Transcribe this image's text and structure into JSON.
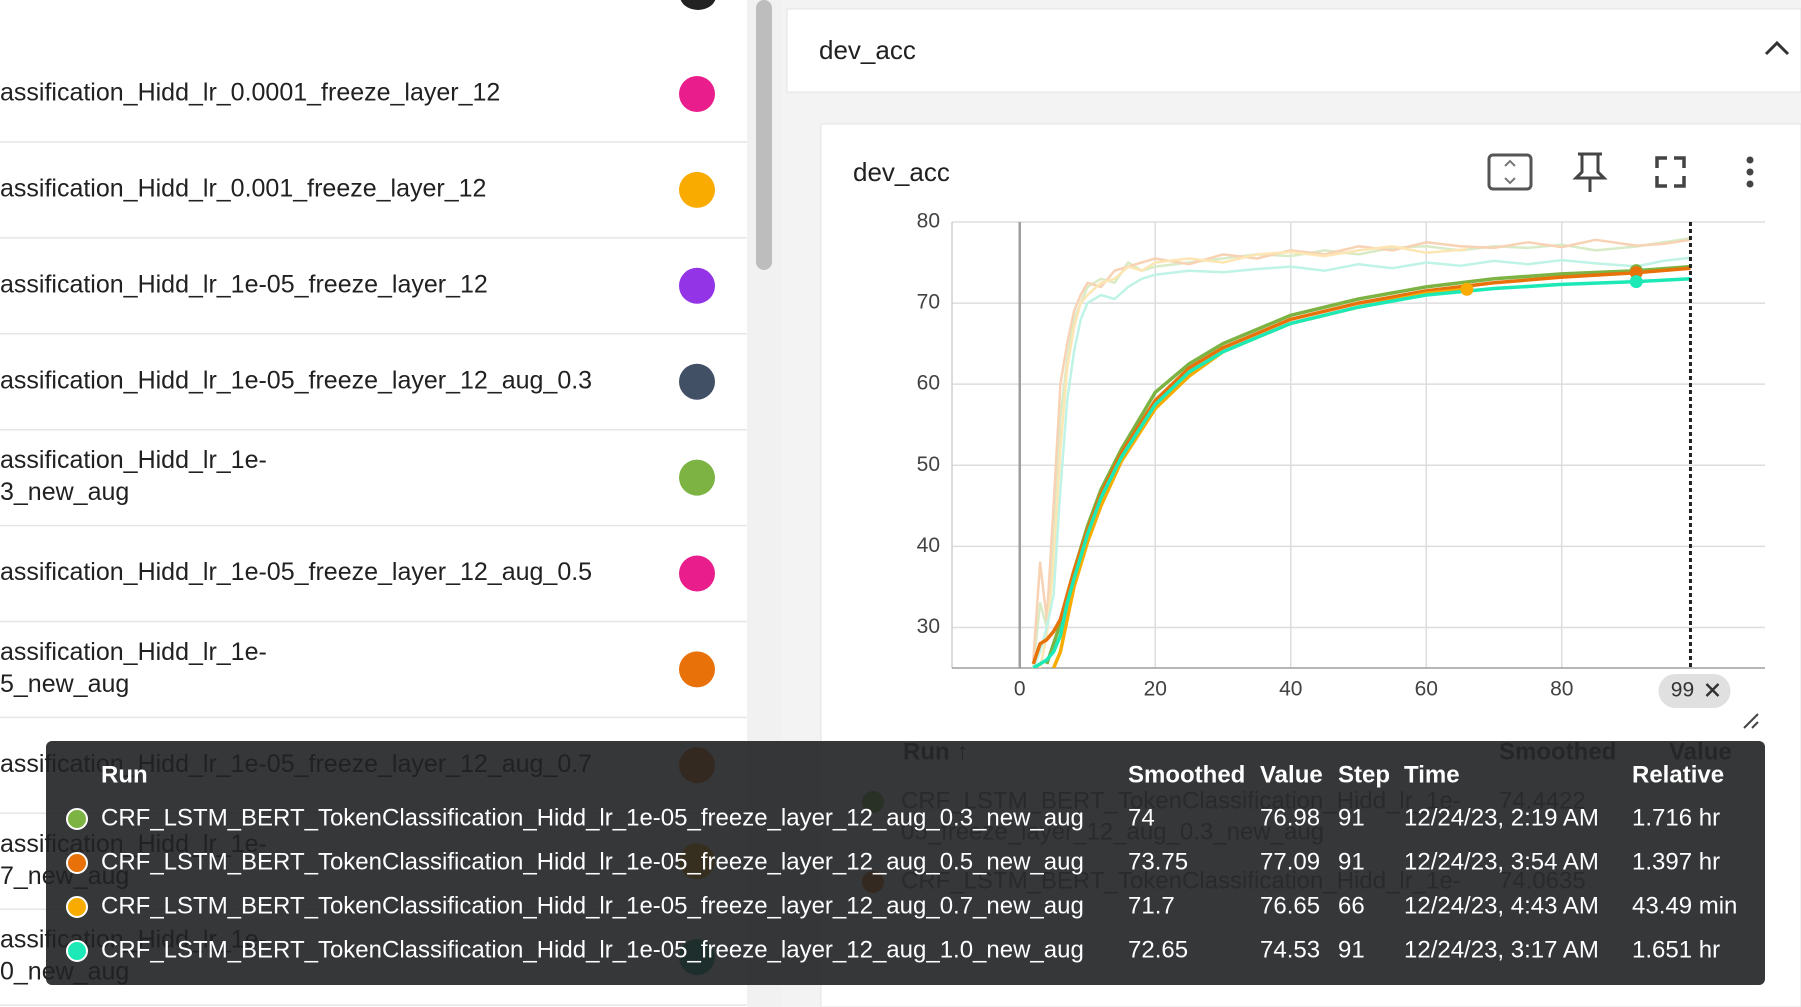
{
  "sidebar": {
    "runs": [
      {
        "label": [
          "assification_Hidd_lr_0.0001_freeze_layer_12"
        ],
        "color": "#e91e8c"
      },
      {
        "label": [
          "assification_Hidd_lr_0.001_freeze_layer_12"
        ],
        "color": "#f9ab00"
      },
      {
        "label": [
          "assification_Hidd_lr_1e-05_freeze_layer_12"
        ],
        "color": "#9334e6"
      },
      {
        "label": [
          "assification_Hidd_lr_1e-05_freeze_layer_12_aug_0.3"
        ],
        "color": "#425066"
      },
      {
        "label": [
          "assification_Hidd_lr_1e-",
          "3_new_aug"
        ],
        "color": "#7cb342"
      },
      {
        "label": [
          "assification_Hidd_lr_1e-05_freeze_layer_12_aug_0.5"
        ],
        "color": "#e91e8c"
      },
      {
        "label": [
          "assification_Hidd_lr_1e-",
          "5_new_aug"
        ],
        "color": "#e8710a"
      },
      {
        "label": [
          "assification_Hidd_lr_1e-05_freeze_layer_12_aug_0.7"
        ],
        "color": "#e8710a"
      },
      {
        "label": [
          "assification_Hidd_lr_1e-",
          "7_new_aug"
        ],
        "color": "#f9ab00"
      },
      {
        "label": [
          "assification_Hidd_lr_1e-",
          "0_new_aug"
        ],
        "color": "#12a57f"
      }
    ]
  },
  "section_title": "dev_acc",
  "chart_data": {
    "type": "line",
    "title": "dev_acc",
    "xlim": [
      -10,
      110
    ],
    "ylim": [
      25,
      80
    ],
    "xticks": [
      0,
      20,
      40,
      60,
      80
    ],
    "yticks": [
      30,
      40,
      50,
      60,
      70,
      80
    ],
    "grid": true,
    "cursor": 99,
    "raw_series": [
      {
        "color": "#d8ebc6",
        "x": [
          2,
          3,
          4,
          5,
          6,
          7,
          8,
          9,
          10,
          12,
          14,
          16,
          18,
          20,
          25,
          30,
          35,
          40,
          45,
          50,
          55,
          60,
          65,
          70,
          75,
          80,
          85,
          91,
          95,
          99
        ],
        "values": [
          25,
          33,
          30,
          41,
          56,
          63,
          68,
          70,
          72,
          73,
          72.5,
          75,
          74,
          74.5,
          75,
          75.5,
          76,
          75.8,
          76.5,
          76,
          76.8,
          77,
          76.5,
          77,
          76.8,
          77.2,
          76.5,
          76.98,
          77.5,
          78
        ]
      },
      {
        "color": "#f8d2b4",
        "x": [
          2,
          3,
          4,
          5,
          6,
          7,
          8,
          9,
          10,
          12,
          14,
          16,
          18,
          20,
          25,
          30,
          35,
          40,
          45,
          50,
          55,
          60,
          65,
          70,
          75,
          80,
          85,
          91,
          95,
          99
        ],
        "values": [
          26,
          38,
          31,
          45,
          60,
          65,
          69,
          71,
          72.5,
          72,
          74,
          74.5,
          75,
          75.5,
          74.8,
          76,
          75.5,
          76.5,
          76,
          77,
          76.5,
          77.5,
          77,
          76.8,
          77.5,
          76.9,
          77.8,
          77.09,
          77.3,
          77.8
        ]
      },
      {
        "color": "#fde6b3",
        "x": [
          3,
          4,
          5,
          6,
          7,
          8,
          9,
          10,
          12,
          14,
          16,
          18,
          20,
          25,
          30,
          35,
          40,
          45,
          50,
          55,
          60,
          66
        ],
        "values": [
          25,
          29,
          38,
          52,
          62,
          67,
          70,
          71,
          72.5,
          73,
          74.5,
          74,
          75,
          75.5,
          75,
          76,
          76.3,
          75.8,
          76.5,
          77,
          76.2,
          76.65
        ]
      },
      {
        "color": "#bff3e6",
        "x": [
          2,
          3,
          4,
          5,
          6,
          7,
          8,
          9,
          10,
          12,
          14,
          16,
          18,
          20,
          25,
          30,
          35,
          40,
          45,
          50,
          55,
          60,
          65,
          70,
          75,
          80,
          85,
          91,
          95,
          99
        ],
        "values": [
          25,
          27,
          30,
          34,
          47,
          58,
          64,
          68,
          70,
          71,
          70.5,
          72,
          73,
          73.5,
          74,
          73.8,
          74.2,
          74.5,
          74,
          74.8,
          74.3,
          75,
          74.6,
          75.2,
          74.8,
          75.3,
          74.9,
          74.53,
          75.2,
          75.6
        ]
      }
    ],
    "series": [
      {
        "color": "#7cb342",
        "x": [
          4,
          5,
          6,
          7,
          8,
          10,
          12,
          15,
          20,
          25,
          30,
          40,
          50,
          60,
          70,
          80,
          91,
          99
        ],
        "values": [
          25.5,
          28,
          30.5,
          34,
          37,
          42.5,
          47,
          52,
          59,
          62.5,
          65,
          68.5,
          70.5,
          72,
          73,
          73.6,
          74,
          74.5
        ]
      },
      {
        "color": "#e8710a",
        "x": [
          2,
          3,
          4,
          5,
          6,
          7,
          8,
          10,
          12,
          15,
          20,
          25,
          30,
          40,
          50,
          60,
          70,
          80,
          91,
          99
        ],
        "values": [
          25.5,
          28,
          28.5,
          29.5,
          31,
          34,
          37,
          42,
          46.5,
          51.5,
          58,
          62,
          64.5,
          68,
          70,
          71.5,
          72.5,
          73.2,
          73.75,
          74.3
        ]
      },
      {
        "color": "#f9ab00",
        "x": [
          5,
          6,
          7,
          8,
          10,
          12,
          15,
          20,
          25,
          30,
          40,
          50,
          60,
          66
        ],
        "values": [
          25,
          27,
          31,
          35,
          40.5,
          45,
          50.5,
          57,
          61,
          64,
          67.5,
          69.5,
          71.2,
          71.7
        ]
      },
      {
        "color": "#1de9b6",
        "x": [
          2,
          3,
          4,
          5,
          6,
          7,
          8,
          10,
          12,
          15,
          20,
          25,
          30,
          40,
          50,
          60,
          70,
          80,
          91,
          99
        ],
        "values": [
          25,
          25.5,
          26,
          27,
          29,
          33,
          36,
          41.5,
          46,
          51,
          57.5,
          61.5,
          64,
          67.5,
          69.5,
          71,
          71.8,
          72.3,
          72.65,
          73
        ]
      }
    ]
  },
  "run_table": {
    "columns": [
      "Run ↑",
      "Smoothed",
      "Value"
    ],
    "rows": [
      {
        "run": [
          "CRF_LSTM_BERT_TokenClassification_Hidd_lr_1e-",
          "05_freeze_layer_12_aug_0.3_new_aug"
        ],
        "smoothed": 74.4422
      },
      {
        "run": [
          "CRF_LSTM_BERT_TokenClassification_Hidd_lr_1e-"
        ],
        "smoothed": 74.0635
      }
    ]
  },
  "tooltip": {
    "columns": [
      "Run",
      "Smoothed",
      "Value",
      "Step",
      "Time",
      "Relative"
    ],
    "rows": [
      {
        "run": "CRF_LSTM_BERT_TokenClassification_Hidd_lr_1e-05_freeze_layer_12_aug_0.3_new_aug",
        "smoothed": 74,
        "value": 76.98,
        "step": 91,
        "time": "12/24/23, 2:19 AM",
        "relative": "1.716 hr"
      },
      {
        "run": "CRF_LSTM_BERT_TokenClassification_Hidd_lr_1e-05_freeze_layer_12_aug_0.5_new_aug",
        "smoothed": 73.75,
        "value": 77.09,
        "step": 91,
        "time": "12/24/23, 3:54 AM",
        "relative": "1.397 hr"
      },
      {
        "run": "CRF_LSTM_BERT_TokenClassification_Hidd_lr_1e-05_freeze_layer_12_aug_0.7_new_aug",
        "smoothed": 71.7,
        "value": 76.65,
        "step": 66,
        "time": "12/24/23, 4:43 AM",
        "relative": "43.49 min"
      },
      {
        "run": "CRF_LSTM_BERT_TokenClassification_Hidd_lr_1e-05_freeze_layer_12_aug_1.0_new_aug",
        "smoothed": 72.65,
        "value": 74.53,
        "step": 91,
        "time": "12/24/23, 3:17 AM",
        "relative": "1.651 hr"
      }
    ]
  }
}
